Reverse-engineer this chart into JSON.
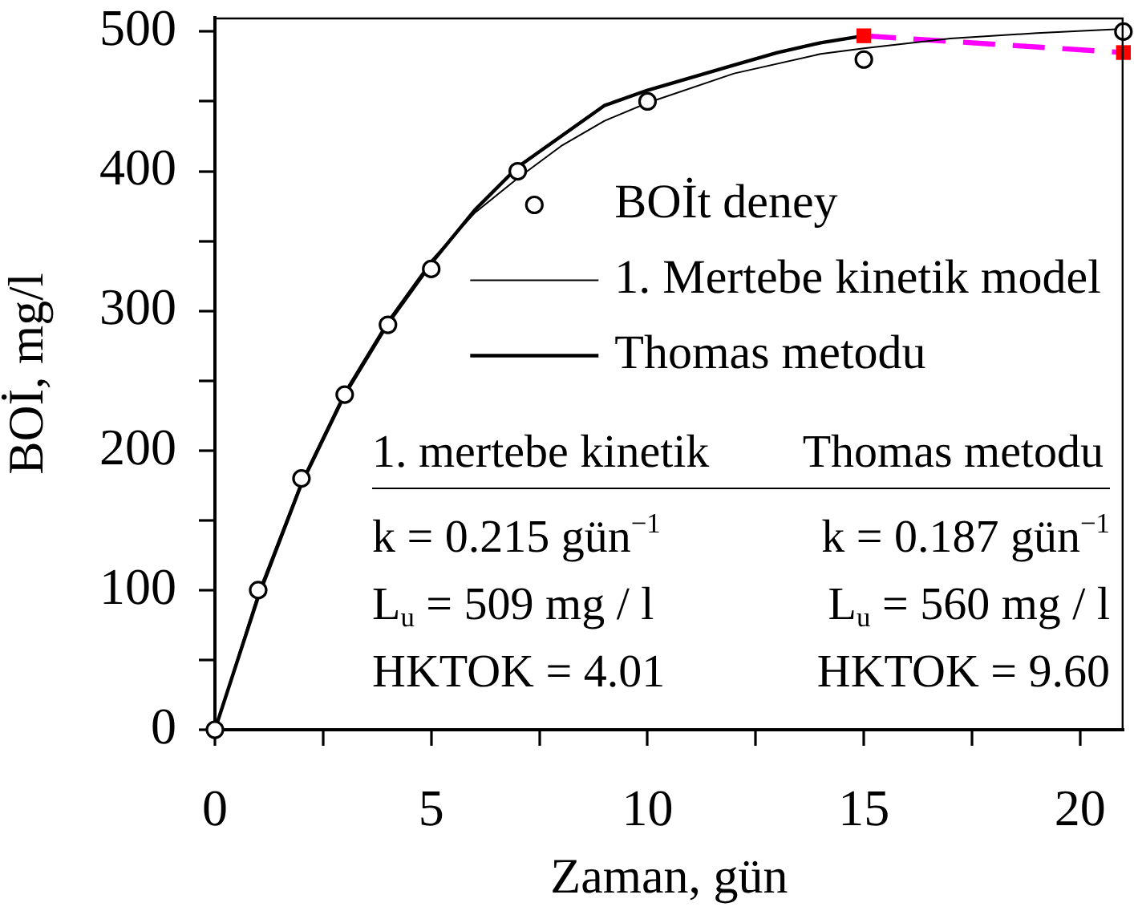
{
  "chart_data": {
    "type": "line",
    "xlabel": "Zaman, gün",
    "ylabel": "BOİ, mg/l",
    "xlim": [
      0,
      21
    ],
    "xticks": [
      0,
      {
        "value": 2.5,
        "label": null
      },
      5,
      {
        "value": 7.5,
        "label": null
      },
      10,
      {
        "value": 12.5,
        "label": null
      },
      15,
      {
        "value": 17.5,
        "label": null
      },
      20
    ],
    "ylim": [
      0,
      510
    ],
    "yticks": [
      0,
      {
        "value": 50,
        "label": null
      },
      100,
      {
        "value": 150,
        "label": null
      },
      200,
      {
        "value": 250,
        "label": null
      },
      300,
      {
        "value": 350,
        "label": null
      },
      400,
      {
        "value": 450,
        "label": null
      },
      500
    ],
    "legend": "right",
    "series": [
      {
        "name": "BOİt deney",
        "type": "scatter",
        "marker": "circle",
        "color": "#000000",
        "x": [
          0,
          1,
          2,
          3,
          4,
          5,
          7,
          10,
          15,
          21
        ],
        "values": [
          0,
          100,
          180,
          240,
          290,
          330,
          400,
          450,
          480,
          500
        ]
      },
      {
        "name": "1. Mertebe kinetik model",
        "color": "#000000",
        "x": [
          0,
          1,
          2,
          3,
          4,
          5,
          6,
          7,
          8,
          9,
          10,
          12,
          14,
          15,
          17,
          19,
          21
        ],
        "values": [
          0,
          98,
          178,
          242,
          293,
          336,
          370,
          395,
          418,
          436,
          449,
          470,
          484,
          488,
          495,
          499,
          502
        ]
      },
      {
        "name": "Thomas metodu",
        "color": "#000000",
        "x": [
          0,
          1,
          2,
          3,
          4,
          5,
          6,
          7,
          8,
          9,
          10,
          11,
          12,
          13,
          14,
          15
        ],
        "values": [
          0,
          95,
          176,
          240,
          291,
          334,
          372,
          403,
          425,
          447,
          458,
          467,
          476,
          485,
          492,
          497
        ]
      },
      {
        "line_style": "dashed",
        "color": "#ff00ff",
        "x": [
          15,
          21
        ],
        "values": [
          497,
          485
        ]
      },
      {
        "type": "scatter",
        "marker": "square",
        "color": "#ff0000",
        "x": [
          15,
          21
        ],
        "values": [
          497,
          485
        ]
      }
    ],
    "annotations": [
      "1. mertebe kinetik",
      "Thomas metodu",
      "k = 0.215 gün$^{−1}$",
      "k = 0.187 gün$^{−1}$",
      "L$_{u}$ = 509 mg / l",
      "L$_{u}$ = 560 mg / l",
      "HKTOK = 4.01",
      "HKTOK = 9.60"
    ]
  }
}
